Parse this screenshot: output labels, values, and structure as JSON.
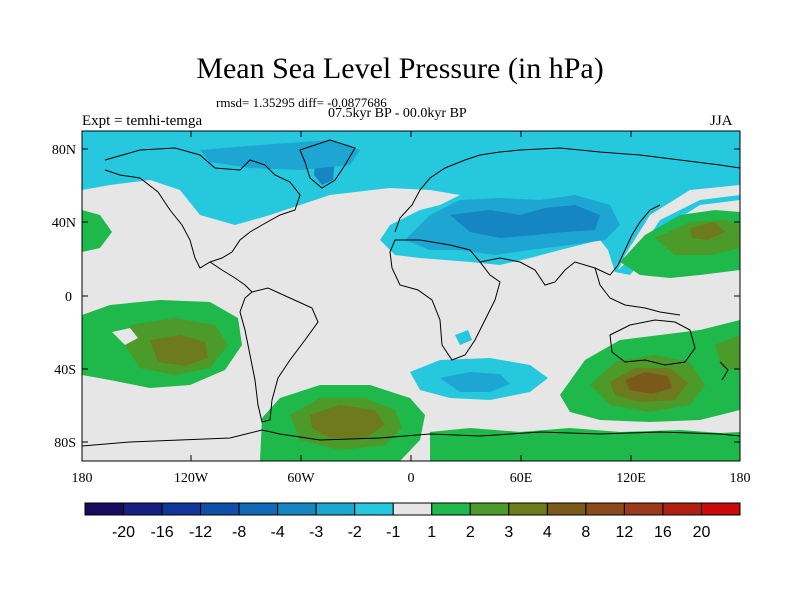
{
  "header": {
    "title": "Mean Sea Level Pressure (in hPa)",
    "stats": "rmsd= 1.35295 diff= -0.0877686",
    "period": "07.5kyr BP - 00.0kyr BP",
    "experiment": "Expt = temhi-temga",
    "season": "JJA"
  },
  "axes": {
    "lat_labels": [
      "80N",
      "40N",
      "0",
      "40S",
      "80S"
    ],
    "lon_labels": [
      "180",
      "120W",
      "60W",
      "0",
      "60E",
      "120E",
      "180"
    ]
  },
  "colorbar": {
    "labels": [
      "-20",
      "-16",
      "-12",
      "-8",
      "-4",
      "-3",
      "-2",
      "-1",
      "1",
      "2",
      "3",
      "4",
      "8",
      "12",
      "16",
      "20"
    ],
    "colors": [
      "#1a0a5e",
      "#16207f",
      "#12359b",
      "#104fa9",
      "#1169b8",
      "#1585c4",
      "#1ea6d2",
      "#26c8dd",
      "#e6e6e6",
      "#1fb84a",
      "#4c9a2a",
      "#6e7a1e",
      "#7a5a1a",
      "#8a4a1a",
      "#9a3a1a",
      "#b02010",
      "#c80a0a"
    ]
  },
  "palette": {
    "land": "#e6e6e6",
    "light_blue": "#26c8dd",
    "mid_blue": "#1ea6d2",
    "blue": "#1585c4",
    "green": "#1fb84a",
    "dark_green": "#4c9a2a",
    "olive": "#6e7a1e",
    "brown": "#7a5a1a"
  }
}
